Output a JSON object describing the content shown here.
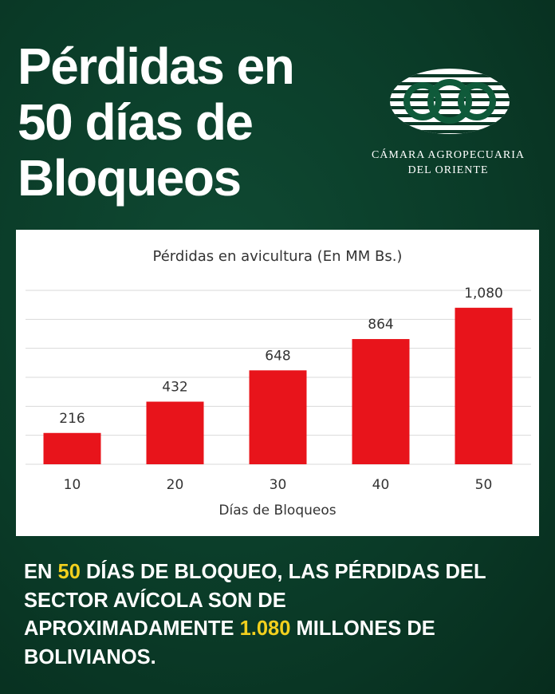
{
  "header": {
    "title_lines": [
      "Pérdidas en",
      "50 días de",
      "Bloqueos"
    ]
  },
  "logo": {
    "lines": [
      "CÁMARA AGROPECUARIA",
      "DEL ORIENTE"
    ]
  },
  "chart_data": {
    "type": "bar",
    "title": "Pérdidas en avicultura (En MM Bs.)",
    "x_label": "Días de Bloqueos",
    "categories": [
      "10",
      "20",
      "30",
      "40",
      "50"
    ],
    "values": [
      216,
      432,
      648,
      864,
      1080
    ],
    "value_labels": [
      "216",
      "432",
      "648",
      "864",
      "1,080"
    ],
    "color": "#e8141b",
    "ylim": [
      0,
      1200
    ],
    "yticks": [
      0,
      200,
      400,
      600,
      800,
      1000,
      1200
    ],
    "grid": true
  },
  "footer": {
    "lines": [
      [
        {
          "text": "EN "
        },
        {
          "text": "50",
          "color": "#f2d01e"
        },
        {
          "text": " DÍAS DE BLOQUEO, LAS PÉRDIDAS DEL"
        }
      ],
      [
        {
          "text": "SECTOR AVÍCOLA SON DE"
        }
      ],
      [
        {
          "text": "APROXIMADAMENTE "
        },
        {
          "text": "1.080",
          "color": "#f2d01e"
        },
        {
          "text": " MILLONES DE"
        }
      ],
      [
        {
          "text": "BOLIVIANOS."
        }
      ]
    ]
  }
}
